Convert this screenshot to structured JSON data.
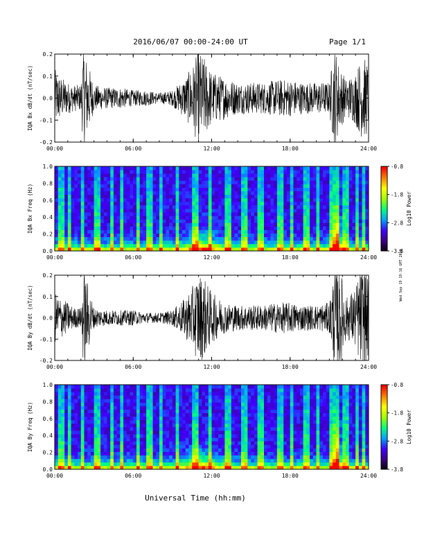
{
  "header": {
    "title": "2016/06/07  00:00-24:00 UT",
    "page": "Page 1/1"
  },
  "footer": {
    "xlabel": "Universal Time (hh:mm)",
    "side_stamp": "Wed Sep 19 19:16 GMT 2018"
  },
  "colors": {
    "trace": "#000000",
    "colormap": [
      "#000000",
      "#3a0080",
      "#4000ff",
      "#00a0ff",
      "#00ff80",
      "#a0ff00",
      "#ffff00",
      "#ff8000",
      "#ff0000"
    ]
  },
  "chart_data": [
    {
      "id": "bx_dbdt",
      "type": "line",
      "ylabel": "IQA Bx dB/dt (nT/sec)",
      "xlim": [
        0,
        24
      ],
      "ylim": [
        -0.2,
        0.2
      ],
      "xticks": [
        "00:00",
        "06:00",
        "12:00",
        "18:00",
        "24:00"
      ],
      "yticks": [
        "-0.2",
        "-0.1",
        "0.0",
        "0.1",
        "0.2"
      ],
      "envelope": {
        "hours": [
          0,
          0.5,
          1,
          1.5,
          2,
          2.2,
          3,
          4,
          5,
          6,
          7,
          8,
          9,
          10,
          10.5,
          11,
          11.5,
          12,
          13,
          14,
          15,
          16,
          17,
          18,
          19,
          20,
          21,
          21.4,
          21.8,
          22.3,
          23,
          23.4,
          23.8,
          24
        ],
        "amplitude": [
          0.11,
          0.08,
          0.06,
          0.05,
          0.05,
          0.2,
          0.05,
          0.04,
          0.04,
          0.03,
          0.03,
          0.02,
          0.03,
          0.08,
          0.12,
          0.18,
          0.15,
          0.1,
          0.08,
          0.06,
          0.06,
          0.06,
          0.07,
          0.07,
          0.06,
          0.06,
          0.06,
          0.2,
          0.12,
          0.07,
          0.1,
          0.15,
          0.15,
          0.12
        ]
      }
    },
    {
      "id": "bx_freq",
      "type": "heatmap",
      "ylabel": "IQA Bx Freq (Hz)",
      "xlim": [
        0,
        24
      ],
      "ylim": [
        0,
        1.0
      ],
      "xticks": [
        "00:00",
        "06:00",
        "12:00",
        "18:00",
        "24:00"
      ],
      "yticks": [
        "0.0",
        "0.2",
        "0.4",
        "0.6",
        "0.8",
        "1.0"
      ],
      "colorbar": {
        "label": "Log10 Power",
        "range": [
          -3.8,
          -0.8
        ],
        "ticks": [
          "-0.8",
          "-1.8",
          "-2.8",
          "-3.8"
        ]
      }
    },
    {
      "id": "by_dbdt",
      "type": "line",
      "ylabel": "IQA By dB/dt (nT/sec)",
      "xlim": [
        0,
        24
      ],
      "ylim": [
        -0.2,
        0.2
      ],
      "xticks": [
        "00:00",
        "06:00",
        "12:00",
        "18:00",
        "24:00"
      ],
      "yticks": [
        "-0.2",
        "-0.1",
        "0.0",
        "0.1",
        "0.2"
      ],
      "envelope": {
        "hours": [
          0,
          0.5,
          1,
          1.5,
          2,
          2.2,
          3,
          4,
          5,
          6,
          7,
          8,
          9,
          10,
          10.5,
          11,
          11.5,
          12,
          13,
          14,
          15,
          16,
          17,
          18,
          19,
          20,
          21,
          21.4,
          21.8,
          22.3,
          23,
          23.4,
          23.8,
          24
        ],
        "amplitude": [
          0.1,
          0.08,
          0.06,
          0.04,
          0.04,
          0.2,
          0.04,
          0.03,
          0.03,
          0.03,
          0.02,
          0.02,
          0.03,
          0.08,
          0.12,
          0.18,
          0.15,
          0.1,
          0.06,
          0.05,
          0.05,
          0.05,
          0.06,
          0.06,
          0.05,
          0.05,
          0.06,
          0.2,
          0.2,
          0.08,
          0.12,
          0.2,
          0.2,
          0.15
        ]
      }
    },
    {
      "id": "by_freq",
      "type": "heatmap",
      "ylabel": "IQA By Freq (Hz)",
      "xlim": [
        0,
        24
      ],
      "ylim": [
        0,
        1.0
      ],
      "xticks": [
        "00:00",
        "06:00",
        "12:00",
        "18:00",
        "24:00"
      ],
      "yticks": [
        "0.0",
        "0.2",
        "0.4",
        "0.6",
        "0.8",
        "1.0"
      ],
      "colorbar": {
        "label": "Log10 Power",
        "range": [
          -3.8,
          -0.8
        ],
        "ticks": [
          "-0.8",
          "-1.8",
          "-2.8",
          "-3.8"
        ]
      }
    }
  ]
}
